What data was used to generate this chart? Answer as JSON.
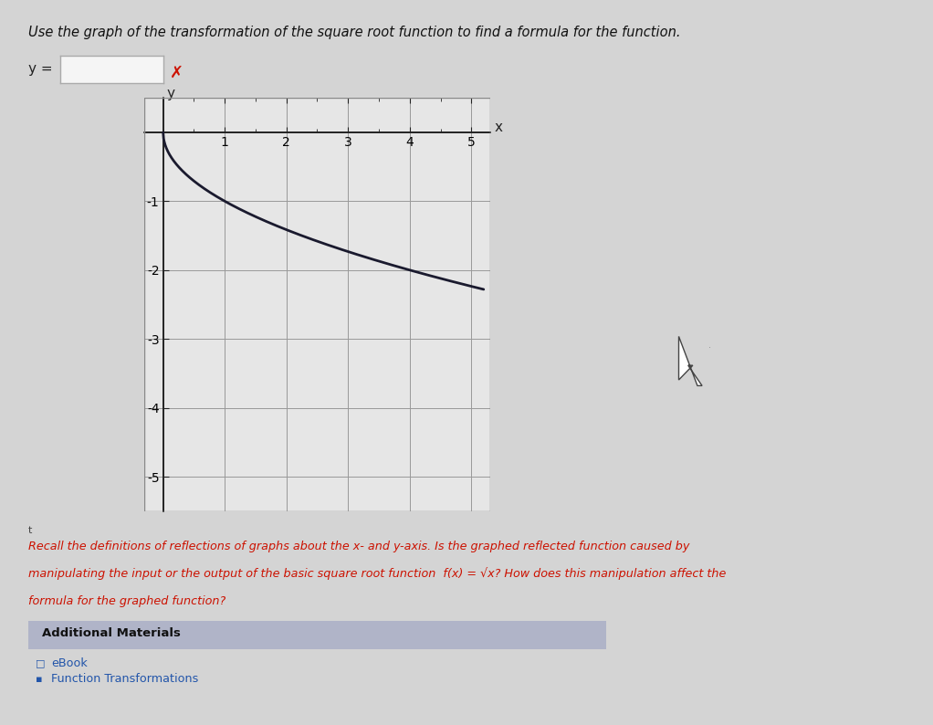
{
  "title": "Use the graph of the transformation of the square root function to find a formula for the function.",
  "background_color": "#d4d4d4",
  "plot_bg_color": "#e6e6e6",
  "plot_border_color": "#888888",
  "curve_color": "#1a1a2e",
  "curve_linewidth": 2.0,
  "x_label": "x",
  "y_label": "y",
  "xlim": [
    -0.3,
    5.3
  ],
  "ylim": [
    -5.5,
    0.5
  ],
  "x_ticks": [
    1,
    2,
    3,
    4,
    5
  ],
  "y_ticks": [
    -1,
    -2,
    -3,
    -4,
    -5
  ],
  "grid_color": "#999999",
  "axis_color": "#222222",
  "hint_text_line1": "Recall the definitions of reflections of graphs about the x- and y-axis. Is the graphed reflected function caused by",
  "hint_text_line2": "manipulating the input or the output of the basic square root function  f(x) = √x? How does this manipulation affect the",
  "hint_text_line3": "formula for the graphed function?",
  "hint_color": "#cc1100",
  "additional_materials_text": "Additional Materials",
  "additional_bg": "#b0b4c8",
  "ebook_text": "eBook",
  "function_trans_text": "Function Transformations",
  "links_color": "#2255aa",
  "y_equals_label": "y =",
  "input_box_color": "#f5f5f5",
  "input_box_border": "#aaaaaa",
  "x_mark_color": "#cc1100",
  "cursor_color": "#555555"
}
